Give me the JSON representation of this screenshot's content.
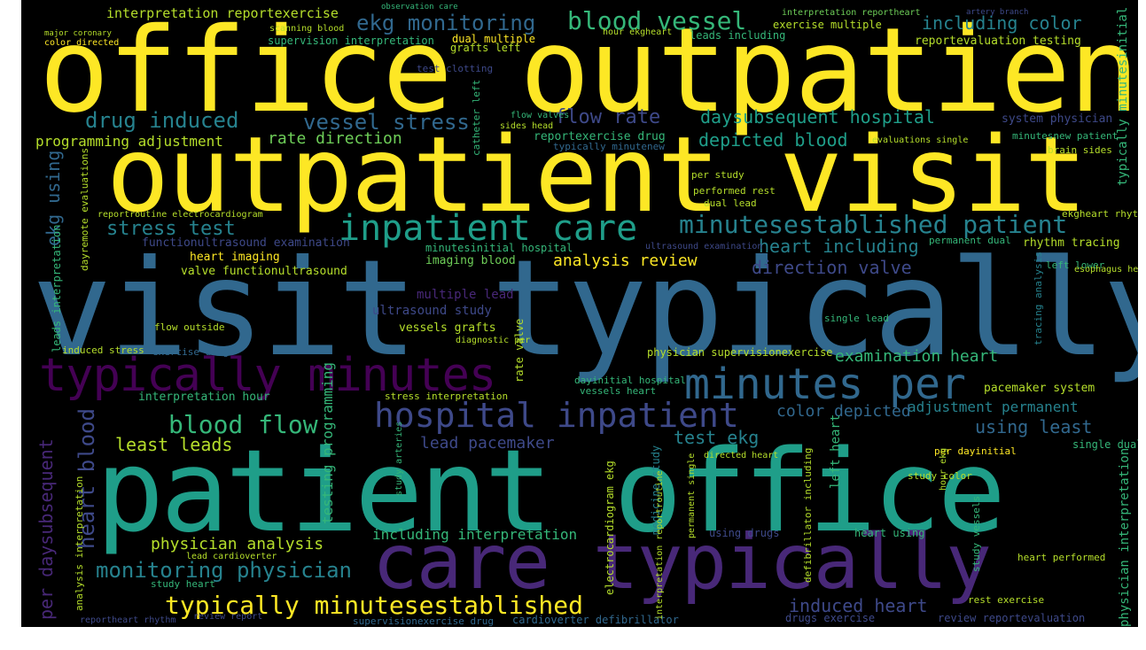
{
  "palette": {
    "yellow": "#fde725",
    "lime": "#b5de2b",
    "green": "#6ece58",
    "teal_green": "#35b779",
    "teal": "#1f9e89",
    "cyan": "#26828e",
    "blue": "#31688e",
    "indigo": "#3e4989",
    "purple": "#482878",
    "dark_purple": "#440154",
    "background": "#000000"
  },
  "words": {
    "w1": "office outpatient",
    "w2": "outpatient visit",
    "w3": "visit typically",
    "w4": "patient office",
    "w5": "care typically",
    "w6": "typically minutes",
    "w7": "minutes per",
    "w8": "hospital inpatient",
    "w9": "inpatient care",
    "w10": "minutesestablished patient",
    "w11": "typically minutesestablished",
    "w12": "blood flow",
    "w13": "monitoring physician",
    "w14": "ekg monitoring",
    "w15": "blood vessel",
    "w16": "including color",
    "w17": "interpretation reportexercise",
    "w18": "drug induced",
    "w19": "vessel stress",
    "w20": "flow rate",
    "w21": "daysubsequent hospital",
    "w22": "depicted blood",
    "w23": "rate direction",
    "w24": "programming adjustment",
    "w25": "stress test",
    "w26": "heart including",
    "w27": "direction valve",
    "w28": "analysis review",
    "w29": "examination heart",
    "w30": "adjustment permanent",
    "w31": "color depicted",
    "w32": "test ekg",
    "w33": "using least",
    "w34": "least leads",
    "w35": "lead pacemaker",
    "w36": "pacemaker system",
    "w37": "physician analysis",
    "w38": "including interpretation",
    "w39": "induced heart",
    "w40": "interpretation hour",
    "w41": "functionultrasound examination",
    "w42": "heart imaging",
    "w43": "valve functionultrasound",
    "w44": "imaging blood",
    "w45": "multiple lead",
    "w46": "ultrasound study",
    "w47": "vessels grafts",
    "w48": "reportexercise drug",
    "w49": "exercise multiple",
    "w50": "leads including",
    "w51": "reportevaluation testing",
    "w52": "interpretation reportheart",
    "w53": "dual multiple",
    "w54": "grafts left",
    "w55": "supervision interpretation",
    "w56": "scanning blood",
    "w57": "color directed",
    "w58": "system physician",
    "w59": "minutesnew patient",
    "w60": "rhythm tracing",
    "w61": "permanent dual",
    "w62": "ekgheart rhythm",
    "w63": "physician supervisionexercise",
    "w64": "dayinitial hospital",
    "w65": "vessels heart",
    "w66": "single dual",
    "w67": "per dayinitial",
    "w68": "study color",
    "w69": "directed heart",
    "w70": "using drugs",
    "w71": "heart using",
    "w72": "heart performed",
    "w73": "drugs exercise",
    "w74": "review reportevaluation",
    "w75": "rest exercise",
    "w76": "cardioverter defibrillator",
    "w77": "supervisionexercise drug",
    "w78": "study heart",
    "w79": "reportheart rhythm",
    "w80": "review report",
    "w81": "lead cardioverter",
    "w82": "stress interpretation",
    "w83": "exercise drug",
    "w84": "induced stress",
    "w85": "flow outside",
    "w86": "minutesinitial hospital",
    "w87": "ultrasound examination",
    "w88": "dual lead",
    "w89": "performed rest",
    "w90": "per study",
    "w91": "single lead",
    "w92": "reportroutine electrocardiogram",
    "w93": "flow valves",
    "w94": "sides head",
    "w95": "test clotting",
    "w96": "typically minutenew",
    "w97": "brain sides",
    "w98": "evaluations single",
    "w99": "diagnostic per",
    "w100": "left lower",
    "w101": "esophagus heart",
    "w102": "left heart",
    "w103": "rate valve",
    "w104": "ekg using",
    "w105": "heart blood",
    "w106": "per daysubsequent",
    "w107": "testing programming",
    "w108": "typically minutesinitial",
    "w109": "physician interpretation",
    "w110": "tracing analysis",
    "w111": "medicine study",
    "w112": "defibrillator including",
    "w113": "study vessels",
    "w114": "electrocardiogram ekg",
    "w115": "interpretation reportroutine",
    "w116": "analysis interpretation",
    "w117": "leads interpretation",
    "w118": "catheter left",
    "w119": "dayremote evaluations",
    "w120": "hour ekg",
    "w121": "permanent single",
    "w122": "study arteries",
    "w123": "observation care",
    "w124": "artery branch",
    "w125": "major coronary",
    "w126": "hour ekgheart"
  }
}
